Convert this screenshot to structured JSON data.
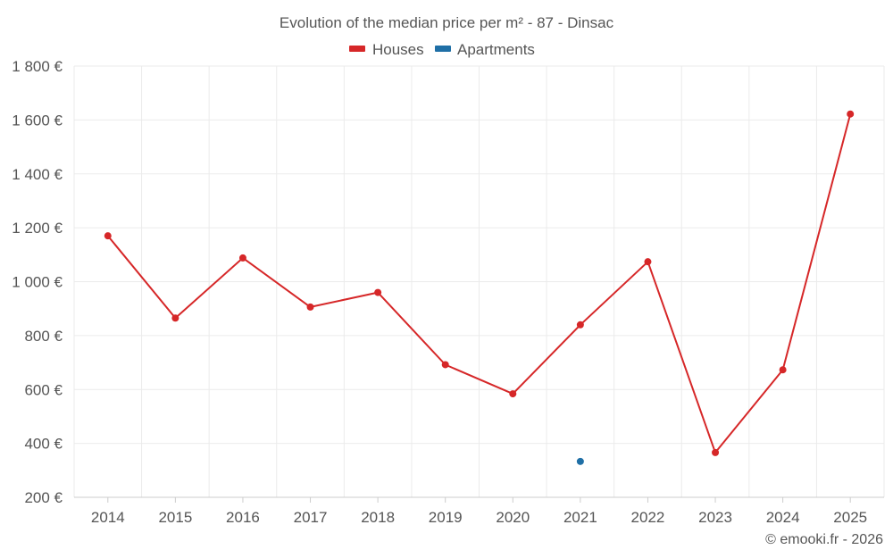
{
  "chart_data": {
    "type": "line",
    "title": "Evolution of the median price per m² - 87 - Dinsac",
    "categories": [
      "2014",
      "2015",
      "2016",
      "2017",
      "2018",
      "2019",
      "2020",
      "2021",
      "2022",
      "2023",
      "2024",
      "2025"
    ],
    "series": [
      {
        "name": "Houses",
        "color": "#d62728",
        "values": [
          1170,
          865,
          1088,
          906,
          960,
          692,
          584,
          840,
          1074,
          366,
          673,
          1622
        ]
      },
      {
        "name": "Apartments",
        "color": "#1f6fa6",
        "values": [
          null,
          null,
          null,
          null,
          null,
          null,
          null,
          333,
          null,
          null,
          null,
          null
        ]
      }
    ],
    "y_ticks": [
      200,
      400,
      600,
      800,
      1000,
      1200,
      1400,
      1600,
      1800
    ],
    "y_tick_labels": [
      "200 €",
      "400 €",
      "600 €",
      "800 €",
      "1 000 €",
      "1 200 €",
      "1 400 €",
      "1 600 €",
      "1 800 €"
    ],
    "ylim": [
      200,
      1800
    ],
    "xlabel": "",
    "ylabel": "",
    "grid": true,
    "legend_position": "top-center"
  },
  "credit": "© emooki.fr - 2026"
}
